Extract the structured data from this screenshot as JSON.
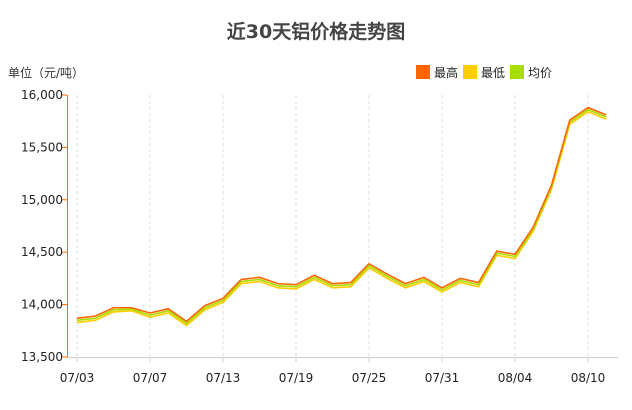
{
  "chart_data": {
    "type": "line",
    "title": "近30天铝价格走势图",
    "ylabel": "单位（元/吨）",
    "ylim": [
      13500,
      16000
    ],
    "yticks": [
      "13,500",
      "14,000",
      "14,500",
      "15,000",
      "15,500",
      "16,000"
    ],
    "ytick_values": [
      13500,
      14000,
      14500,
      15000,
      15500,
      16000
    ],
    "x_tick_labels": [
      "07/03",
      "07/07",
      "07/13",
      "07/19",
      "07/25",
      "07/31",
      "08/04",
      "08/10"
    ],
    "x_tick_index": [
      0,
      4,
      8,
      12,
      16,
      20,
      24,
      28
    ],
    "legend_position": "top-right",
    "grid": "vertical dashed",
    "series": [
      {
        "name": "最高",
        "color": "#ff6600",
        "values": [
          13870,
          13890,
          13970,
          13970,
          13920,
          13960,
          13840,
          13990,
          14060,
          14240,
          14260,
          14200,
          14190,
          14280,
          14200,
          14210,
          14390,
          14290,
          14200,
          14260,
          14160,
          14250,
          14210,
          14510,
          14480,
          14740,
          15140,
          15760,
          15880,
          15810
        ]
      },
      {
        "name": "最低",
        "color": "#ffcc00",
        "values": [
          13830,
          13850,
          13930,
          13940,
          13880,
          13920,
          13800,
          13950,
          14020,
          14200,
          14220,
          14160,
          14150,
          14240,
          14160,
          14170,
          14350,
          14250,
          14160,
          14220,
          14120,
          14210,
          14170,
          14470,
          14440,
          14700,
          15100,
          15720,
          15840,
          15770
        ]
      },
      {
        "name": "均价",
        "color": "#aadd00",
        "values": [
          13850,
          13870,
          13950,
          13955,
          13900,
          13940,
          13820,
          13970,
          14040,
          14220,
          14240,
          14180,
          14170,
          14260,
          14180,
          14190,
          14370,
          14270,
          14180,
          14240,
          14140,
          14230,
          14190,
          14490,
          14460,
          14720,
          15120,
          15740,
          15860,
          15790
        ]
      }
    ]
  }
}
